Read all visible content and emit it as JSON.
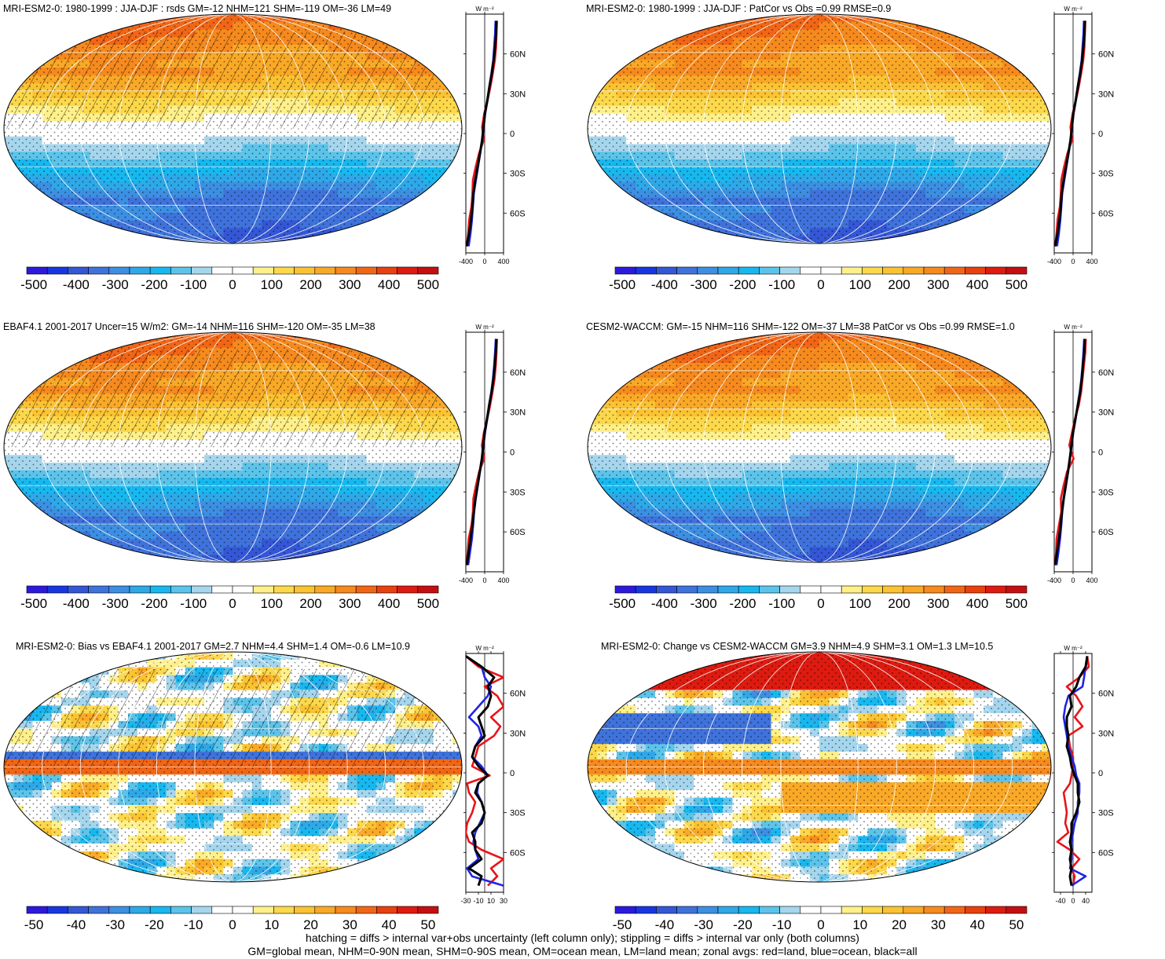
{
  "footer": {
    "line1": "hatching = diffs > internal var+obs uncertainty (left column only); stippling = diffs > internal var only (both columns)",
    "line2": "GM=global mean, NHM=0-90N mean, SHM=0-90S mean, OM=ocean mean, LM=land mean; zonal avgs: red=land, blue=ocean, black=all"
  },
  "colors": {
    "palette": [
      "#2b1adc",
      "#1836e0",
      "#3457d6",
      "#3f72db",
      "#3d8fe2",
      "#2fa8e8",
      "#17b8ef",
      "#5cc4ea",
      "#a5d6ee",
      "#ffffff",
      "#ffffff",
      "#fff08a",
      "#fcd84b",
      "#fbc332",
      "#f9a927",
      "#f68a1e",
      "#f16616",
      "#e9400f",
      "#dd1b10",
      "#c40f12"
    ],
    "land_line": "#e8141a",
    "ocean_line": "#1f24e6",
    "all_line": "#000000"
  },
  "chart_data": [
    {
      "type": "map",
      "title": "MRI-ESM2-0: 1980-1999 : JJA-DJF : rsds GM=-12 NHM=121 SHM=-119 OM=-36 LM=49",
      "field": "seasonal",
      "hatched": true,
      "colorbar": {
        "ticks": [
          "-500",
          "-400",
          "-300",
          "-200",
          "-100",
          "0",
          "100",
          "200",
          "300",
          "400",
          "500"
        ]
      },
      "zonal": {
        "units": "W m⁻²",
        "xlim": [
          -400,
          400
        ],
        "xticks": [
          "-400",
          "0",
          "400"
        ],
        "ylim": [
          -90,
          90
        ],
        "yticks": [
          "60N",
          "30N",
          "0",
          "30S",
          "60S"
        ],
        "ytick_values": [
          60,
          30,
          0,
          -30,
          -60
        ],
        "lat": [
          85,
          75,
          65,
          55,
          45,
          35,
          25,
          15,
          5,
          -5,
          -15,
          -25,
          -35,
          -45,
          -55,
          -65,
          -75,
          -85
        ],
        "all": [
          250,
          240,
          220,
          190,
          150,
          100,
          55,
          5,
          -25,
          -55,
          -100,
          -150,
          -200,
          -240,
          -260,
          -290,
          -330,
          -380
        ],
        "land": [
          260,
          250,
          240,
          215,
          170,
          120,
          60,
          -10,
          -55,
          -20,
          -120,
          -190,
          -250,
          -260,
          -280,
          -330,
          -350,
          -380
        ],
        "ocean": [
          230,
          220,
          200,
          180,
          140,
          95,
          60,
          10,
          -20,
          -50,
          -95,
          -140,
          -185,
          -230,
          -250,
          -270,
          -300,
          -340
        ]
      }
    },
    {
      "type": "map",
      "title": "MRI-ESM2-0: 1980-1999 : JJA-DJF : PatCor vs Obs =0.99 RMSE=0.9",
      "field": "seasonal",
      "hatched": false,
      "colorbar": {
        "ticks": [
          "-500",
          "-400",
          "-300",
          "-200",
          "-100",
          "0",
          "100",
          "200",
          "300",
          "400",
          "500"
        ]
      },
      "zonal": {
        "units": "W m⁻²",
        "xlim": [
          -400,
          400
        ],
        "xticks": [
          "-400",
          "0",
          "400"
        ],
        "ylim": [
          -90,
          90
        ],
        "yticks": [
          "60N",
          "30N",
          "0",
          "30S",
          "60S"
        ],
        "ytick_values": [
          60,
          30,
          0,
          -30,
          -60
        ],
        "lat": [
          85,
          75,
          65,
          55,
          45,
          35,
          25,
          15,
          5,
          -5,
          -15,
          -25,
          -35,
          -45,
          -55,
          -65,
          -75,
          -85
        ],
        "all": [
          250,
          240,
          220,
          190,
          150,
          100,
          55,
          5,
          -25,
          -55,
          -100,
          -150,
          -200,
          -240,
          -260,
          -290,
          -330,
          -380
        ],
        "land": [
          260,
          250,
          240,
          215,
          170,
          120,
          60,
          -10,
          -55,
          -20,
          -120,
          -190,
          -250,
          -260,
          -280,
          -330,
          -350,
          -380
        ],
        "ocean": [
          230,
          220,
          200,
          180,
          140,
          95,
          60,
          10,
          -20,
          -50,
          -95,
          -140,
          -185,
          -230,
          -250,
          -270,
          -300,
          -340
        ]
      }
    },
    {
      "type": "map",
      "title": "EBAF4.1 2001-2017 Uncer=15 W/m2: GM=-14 NHM=116 SHM=-120 OM=-35 LM=38",
      "field": "seasonal",
      "hatched": true,
      "colorbar": {
        "ticks": [
          "-500",
          "-400",
          "-300",
          "-200",
          "-100",
          "0",
          "100",
          "200",
          "300",
          "400",
          "500"
        ]
      },
      "zonal": {
        "units": "W m⁻²",
        "xlim": [
          -400,
          400
        ],
        "xticks": [
          "-400",
          "0",
          "400"
        ],
        "ylim": [
          -90,
          90
        ],
        "yticks": [
          "60N",
          "30N",
          "0",
          "30S",
          "60S"
        ],
        "ytick_values": [
          60,
          30,
          0,
          -30,
          -60
        ],
        "lat": [
          85,
          75,
          65,
          55,
          45,
          35,
          25,
          15,
          5,
          -5,
          -15,
          -25,
          -35,
          -45,
          -55,
          -65,
          -75,
          -85
        ],
        "all": [
          250,
          235,
          215,
          185,
          145,
          95,
          50,
          0,
          -30,
          -60,
          -105,
          -150,
          -195,
          -230,
          -260,
          -300,
          -340,
          -380
        ],
        "land": [
          260,
          250,
          235,
          210,
          165,
          115,
          55,
          -15,
          -60,
          -10,
          -120,
          -185,
          -240,
          -250,
          -280,
          -340,
          -360,
          -380
        ],
        "ocean": [
          235,
          220,
          200,
          175,
          140,
          90,
          55,
          10,
          -25,
          -55,
          -100,
          -145,
          -190,
          -225,
          -245,
          -270,
          -310,
          -350
        ]
      }
    },
    {
      "type": "map",
      "title": "CESM2-WACCM: GM=-15 NHM=116 SHM=-122 OM=-37 LM=38 PatCor vs Obs =0.99 RMSE=1.0",
      "field": "seasonal",
      "hatched": false,
      "colorbar": {
        "ticks": [
          "-500",
          "-400",
          "-300",
          "-200",
          "-100",
          "0",
          "100",
          "200",
          "300",
          "400",
          "500"
        ]
      },
      "zonal": {
        "units": "W m⁻²",
        "xlim": [
          -400,
          400
        ],
        "xticks": [
          "-400",
          "0",
          "400"
        ],
        "ylim": [
          -90,
          90
        ],
        "yticks": [
          "60N",
          "30N",
          "0",
          "30S",
          "60S"
        ],
        "ytick_values": [
          60,
          30,
          0,
          -30,
          -60
        ],
        "lat": [
          85,
          75,
          65,
          55,
          45,
          35,
          25,
          15,
          5,
          -5,
          -15,
          -25,
          -35,
          -45,
          -55,
          -65,
          -75,
          -85
        ],
        "all": [
          250,
          235,
          210,
          185,
          150,
          100,
          50,
          0,
          -35,
          -70,
          -110,
          -155,
          -200,
          -235,
          -265,
          -300,
          -340,
          -380
        ],
        "land": [
          270,
          260,
          230,
          200,
          170,
          120,
          40,
          -20,
          -80,
          10,
          -130,
          -200,
          -260,
          -250,
          -300,
          -350,
          -360,
          -380
        ],
        "ocean": [
          235,
          220,
          200,
          175,
          140,
          95,
          55,
          5,
          -30,
          -65,
          -105,
          -150,
          -195,
          -230,
          -250,
          -275,
          -310,
          -350
        ]
      }
    },
    {
      "type": "map",
      "title": "MRI-ESM2-0: Bias vs EBAF4.1 2001-2017 GM=2.7 NHM=4.4 SHM=1.4 OM=-0.6 LM=10.9",
      "field": "bias",
      "hatched": true,
      "colorbar": {
        "ticks": [
          "-50",
          "-40",
          "-30",
          "-20",
          "-10",
          "0",
          "10",
          "20",
          "30",
          "40",
          "50"
        ]
      },
      "zonal": {
        "units": "W m⁻²",
        "xlim": [
          -30,
          30
        ],
        "xticks": [
          "-30",
          "-10",
          "10",
          "30"
        ],
        "ylim": [
          -90,
          90
        ],
        "yticks": [
          "60N",
          "30N",
          "0",
          "30S",
          "60S"
        ],
        "ytick_values": [
          60,
          30,
          0,
          -30,
          -60
        ],
        "lat": [
          88,
          80,
          72,
          65,
          58,
          50,
          42,
          35,
          28,
          20,
          12,
          5,
          -2,
          -8,
          -15,
          -22,
          -30,
          -38,
          -45,
          -52,
          -58,
          -65,
          -72,
          -78,
          -85
        ],
        "all": [
          -30,
          -5,
          15,
          5,
          10,
          5,
          -10,
          -5,
          0,
          -15,
          -20,
          -10,
          5,
          -10,
          -15,
          -5,
          0,
          -5,
          -20,
          -15,
          -15,
          -5,
          -25,
          -5,
          -10
        ],
        "land": [
          -30,
          -10,
          30,
          0,
          20,
          30,
          10,
          25,
          15,
          -10,
          -15,
          -20,
          8,
          -28,
          -25,
          -15,
          -20,
          -28,
          -30,
          -25,
          -5,
          30,
          10,
          20,
          5
        ],
        "ocean": [
          -30,
          -5,
          0,
          10,
          5,
          -10,
          -25,
          -10,
          -5,
          -15,
          -20,
          -5,
          5,
          -10,
          -12,
          -5,
          0,
          -8,
          -15,
          -18,
          -15,
          -10,
          -28,
          -20,
          30
        ]
      }
    },
    {
      "type": "map",
      "title": "MRI-ESM2-0: Change vs CESM2-WACCM GM=3.9 NHM=4.9 SHM=3.1 OM=1.3 LM=10.5",
      "field": "change",
      "hatched": false,
      "colorbar": {
        "ticks": [
          "-50",
          "-40",
          "-30",
          "-20",
          "-10",
          "0",
          "10",
          "20",
          "30",
          "40",
          "50"
        ]
      },
      "zonal": {
        "units": "W m⁻²",
        "xlim": [
          -60,
          60
        ],
        "xticks": [
          "-40",
          "0",
          "40"
        ],
        "ylim": [
          -90,
          90
        ],
        "yticks": [
          "60N",
          "30N",
          "0",
          "30S",
          "60S"
        ],
        "ytick_values": [
          60,
          30,
          0,
          -30,
          -60
        ],
        "lat": [
          88,
          80,
          72,
          65,
          58,
          50,
          42,
          35,
          28,
          20,
          12,
          5,
          -2,
          -8,
          -15,
          -22,
          -30,
          -38,
          -45,
          -52,
          -58,
          -65,
          -72,
          -78,
          -85
        ],
        "all": [
          45,
          40,
          20,
          10,
          -10,
          -5,
          -20,
          -20,
          -15,
          -20,
          -10,
          -5,
          5,
          15,
          15,
          20,
          10,
          -5,
          -5,
          -10,
          -5,
          -10,
          -5,
          -10,
          -5
        ],
        "land": [
          45,
          50,
          20,
          -20,
          10,
          30,
          5,
          30,
          -15,
          -10,
          0,
          0,
          -5,
          -10,
          -30,
          -25,
          -20,
          -25,
          -15,
          -50,
          -10,
          20,
          -5,
          5,
          0
        ],
        "ocean": [
          45,
          40,
          35,
          30,
          -15,
          -25,
          -30,
          -25,
          -20,
          -15,
          -5,
          5,
          10,
          20,
          20,
          15,
          15,
          5,
          0,
          -5,
          -5,
          -5,
          -10,
          40,
          -5
        ]
      }
    }
  ]
}
